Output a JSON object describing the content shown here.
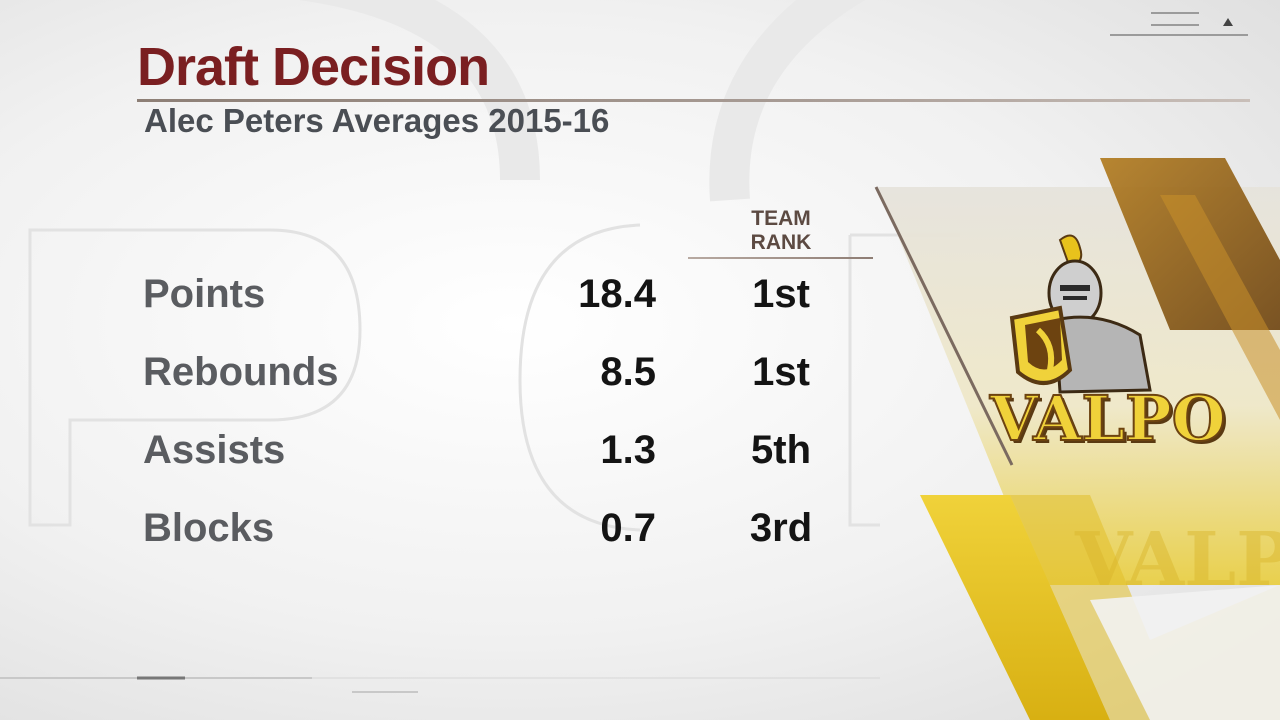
{
  "header": {
    "title": "Draft Decision",
    "subtitle": "Alec Peters Averages 2015-16"
  },
  "table": {
    "rank_header": [
      "TEAM",
      "RANK"
    ],
    "rows": [
      {
        "label": "Points",
        "value": "18.4",
        "rank": "1st"
      },
      {
        "label": "Rebounds",
        "value": "8.5",
        "rank": "1st"
      },
      {
        "label": "Assists",
        "value": "1.3",
        "rank": "5th"
      },
      {
        "label": "Blocks",
        "value": "0.7",
        "rank": "3rd"
      }
    ]
  },
  "logo": {
    "text": "VALPO",
    "background_text": "VALPO"
  },
  "colors": {
    "title": "#7a1f21",
    "subtitle": "#4a4e54",
    "label": "#5a5c60",
    "value": "#141414",
    "gold": "#e8c21c",
    "brown": "#7a4e12"
  }
}
